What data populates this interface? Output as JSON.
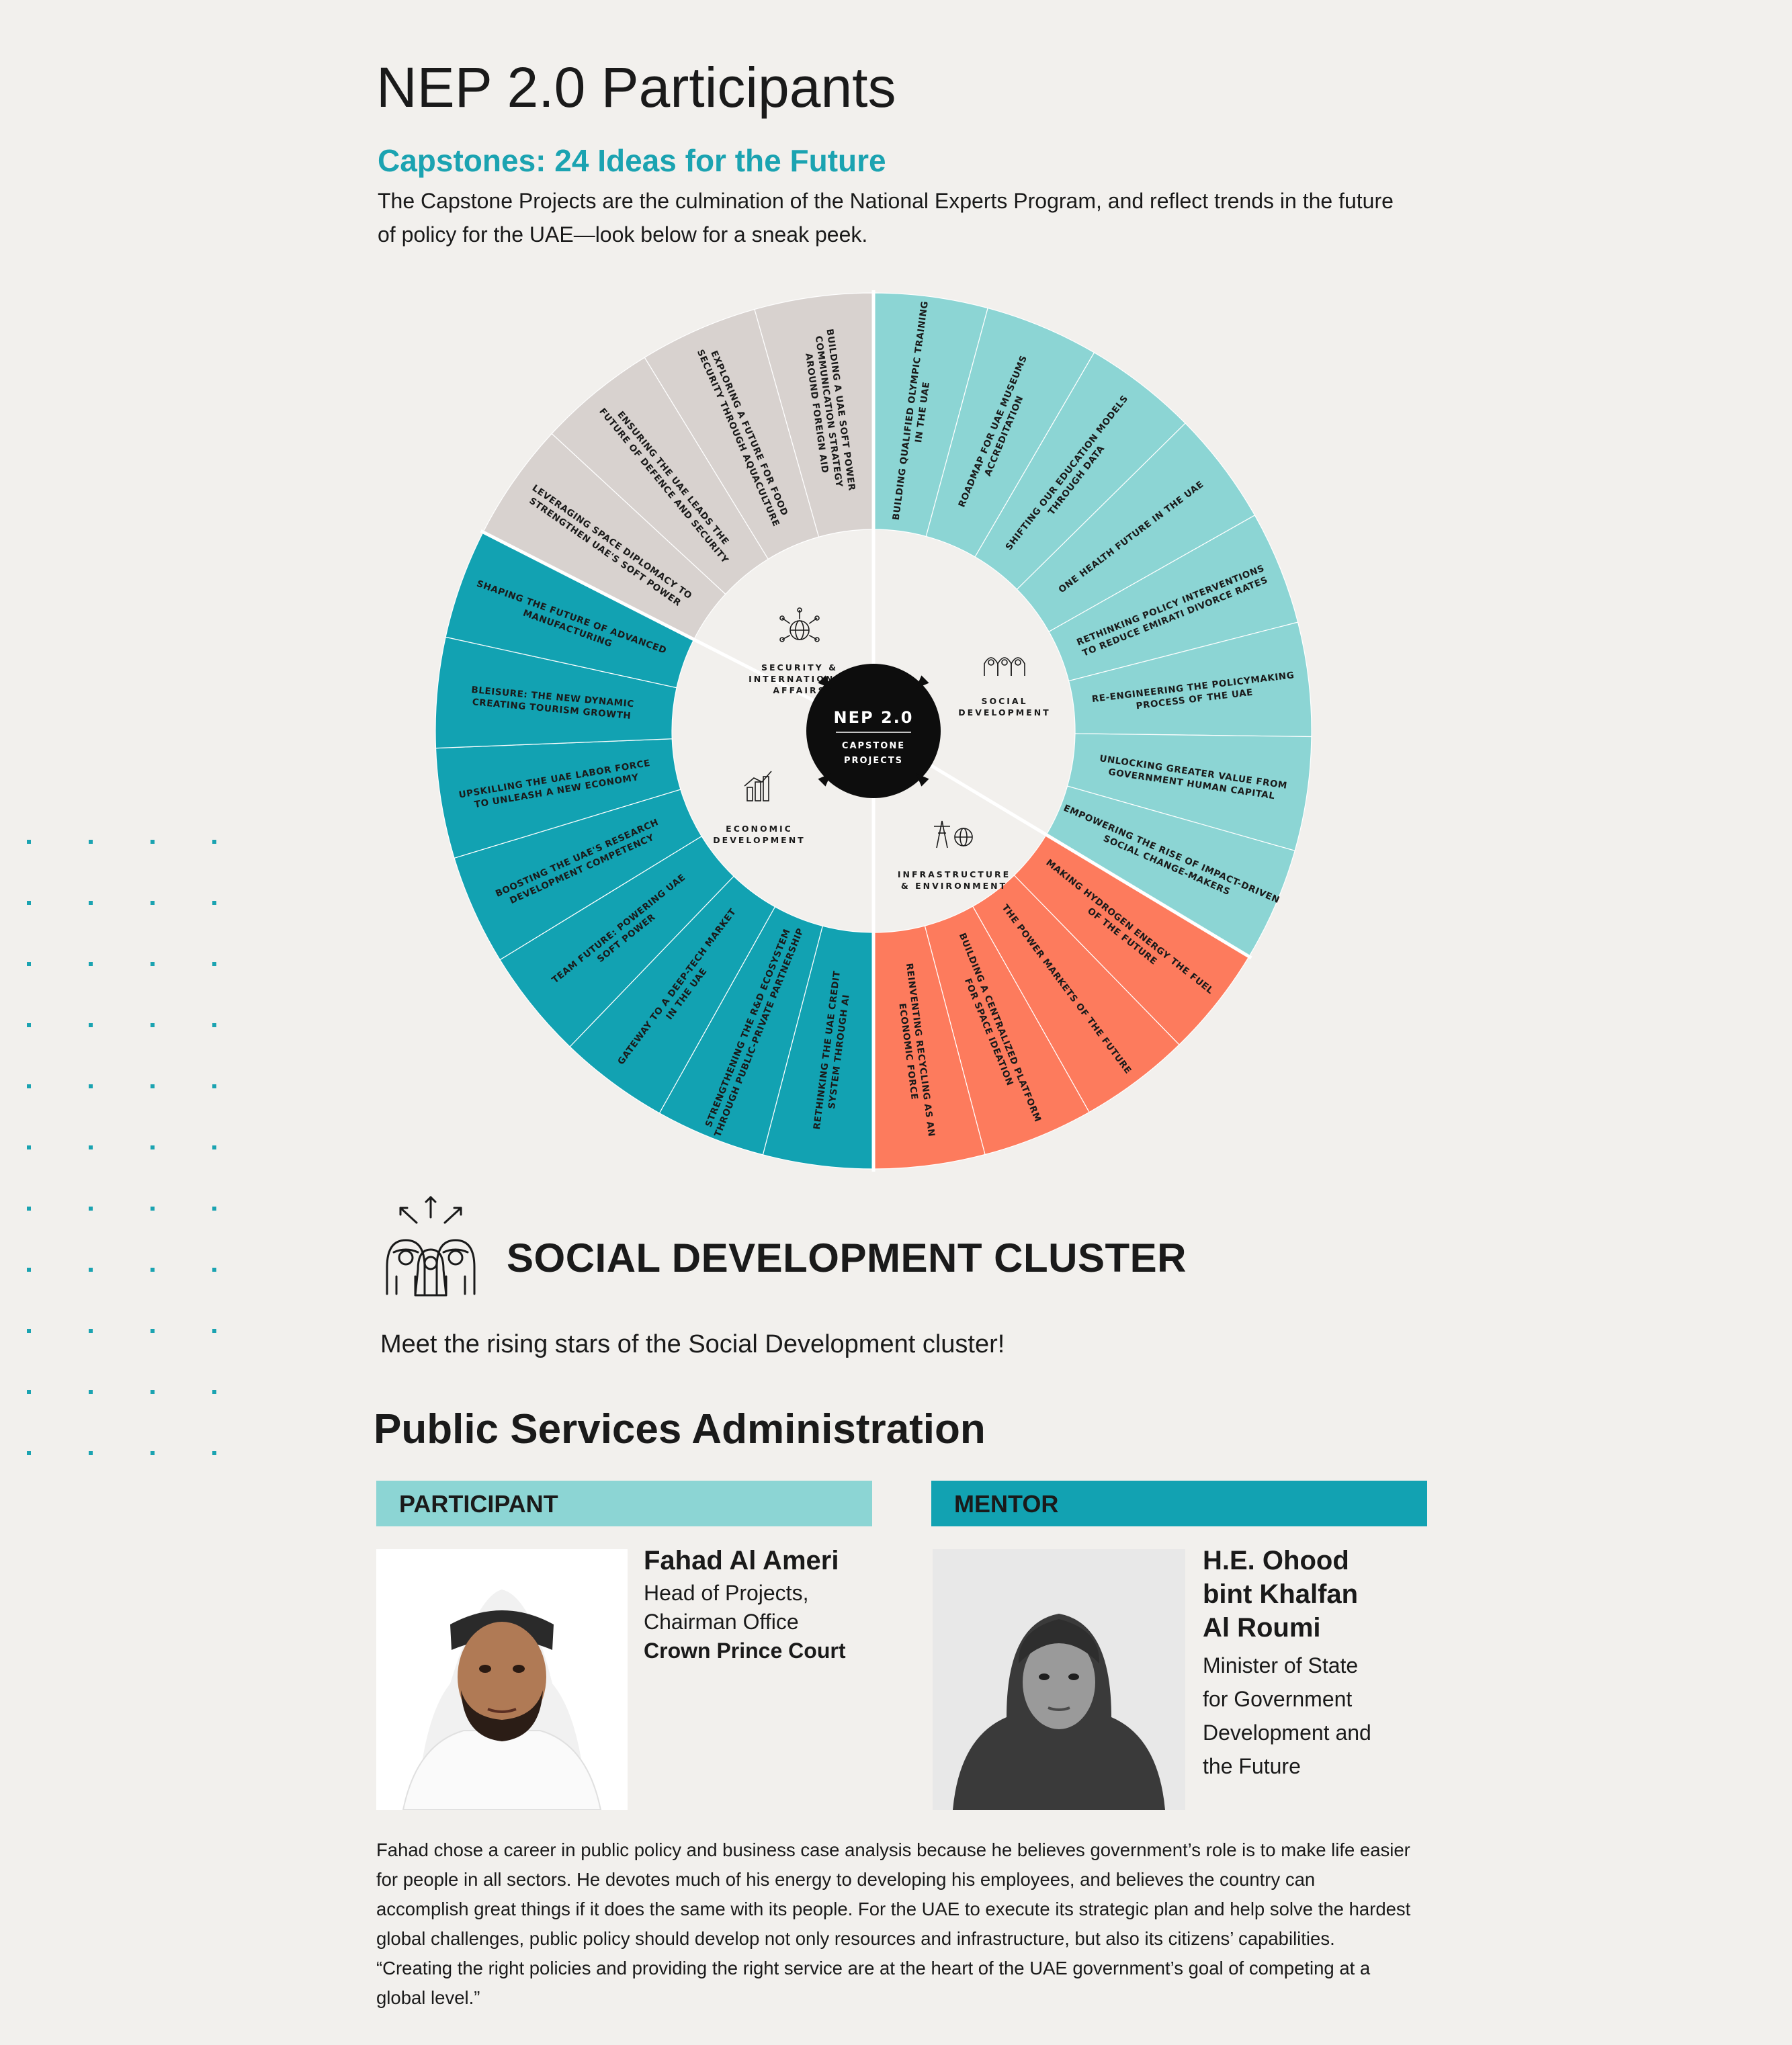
{
  "header": {
    "title": "NEP 2.0 Participants",
    "subtitle": "Capstones: 24 Ideas for the Future",
    "intro": "The Capstone Projects are the culmination of the National Experts Program, and reflect trends in the future of policy for the UAE—look below for a sneak peek."
  },
  "wheel": {
    "center_title": "NEP 2.0",
    "center_sub1": "CAPSTONE",
    "center_sub2": "PROJECTS",
    "clusters": [
      {
        "name": "social",
        "color": "#8cd5d4",
        "labels": [
          "SOCIAL",
          "DEVELOPMENT"
        ],
        "icon": "people-icon"
      },
      {
        "name": "infrastructure",
        "color": "#fd7b5d",
        "labels": [
          "INFRASTRUCTURE",
          "& ENVIRONMENT"
        ],
        "icon": "tower-globe-icon"
      },
      {
        "name": "economic",
        "color": "#12a2b2",
        "labels": [
          "ECONOMIC",
          "DEVELOPMENT"
        ],
        "icon": "bar-chart-icon"
      },
      {
        "name": "security",
        "color": "#d8d2cf",
        "labels": [
          "SECURITY &",
          "INTERNATIONAL",
          "AFFAIRS"
        ],
        "icon": "globe-network-icon"
      }
    ],
    "segments": [
      {
        "cluster": "social",
        "lines": [
          "BUILDING QUALIFIED OLYMPIC TRAINING",
          "IN THE UAE"
        ]
      },
      {
        "cluster": "social",
        "lines": [
          "ROADMAP FOR UAE MUSEUMS",
          "ACCREDITATION"
        ]
      },
      {
        "cluster": "social",
        "lines": [
          "SHIFTING OUR EDUCATION MODELS",
          "THROUGH DATA"
        ]
      },
      {
        "cluster": "social",
        "lines": [
          "ONE HEALTH FUTURE IN THE UAE"
        ]
      },
      {
        "cluster": "social",
        "lines": [
          "RETHINKING POLICY INTERVENTIONS",
          "TO REDUCE EMIRATI DIVORCE RATES"
        ]
      },
      {
        "cluster": "social",
        "lines": [
          "RE-ENGINEERING THE POLICYMAKING",
          "PROCESS OF THE UAE"
        ]
      },
      {
        "cluster": "social",
        "lines": [
          "UNLOCKING GREATER VALUE FROM",
          "GOVERNMENT HUMAN CAPITAL"
        ]
      },
      {
        "cluster": "social",
        "lines": [
          "EMPOWERING THE RISE OF IMPACT-DRIVEN",
          "SOCIAL CHANGE-MAKERS"
        ]
      },
      {
        "cluster": "infrastructure",
        "lines": [
          "MAKING HYDROGEN ENERGY THE FUEL",
          "OF THE FUTURE"
        ]
      },
      {
        "cluster": "infrastructure",
        "lines": [
          "THE POWER MARKETS OF THE FUTURE"
        ]
      },
      {
        "cluster": "infrastructure",
        "lines": [
          "BUILDING A CENTRALIZED PLATFORM",
          "FOR SPACE IDEATION"
        ]
      },
      {
        "cluster": "infrastructure",
        "lines": [
          "REINVENTING RECYCLING AS AN",
          "ECONOMIC FORCE"
        ]
      },
      {
        "cluster": "economic",
        "lines": [
          "RETHINKING THE UAE CREDIT",
          "SYSTEM THROUGH AI"
        ]
      },
      {
        "cluster": "economic",
        "lines": [
          "STRENGTHENING THE R&D ECOSYSTEM",
          "THROUGH PUBLIC-PRIVATE PARTNERSHIP"
        ]
      },
      {
        "cluster": "economic",
        "lines": [
          "GATEWAY TO A DEEP-TECH MARKET",
          "IN THE UAE"
        ]
      },
      {
        "cluster": "economic",
        "lines": [
          "TEAM FUTURE: POWERING UAE",
          "SOFT POWER"
        ]
      },
      {
        "cluster": "economic",
        "lines": [
          "BOOSTING THE UAE'S RESEARCH",
          "DEVELOPMENT COMPETENCY"
        ]
      },
      {
        "cluster": "economic",
        "lines": [
          "UPSKILLING THE UAE LABOR FORCE",
          "TO UNLEASH A NEW ECONOMY"
        ]
      },
      {
        "cluster": "economic",
        "lines": [
          "BLEISURE: THE NEW DYNAMIC",
          "CREATING TOURISM GROWTH"
        ]
      },
      {
        "cluster": "economic",
        "lines": [
          "SHAPING THE FUTURE OF ADVANCED",
          "MANUFACTURING"
        ]
      },
      {
        "cluster": "security",
        "lines": [
          "LEVERAGING SPACE DIPLOMACY TO",
          "STRENGTHEN UAE'S SOFT POWER"
        ]
      },
      {
        "cluster": "security",
        "lines": [
          "ENSURING THE UAE LEADS THE",
          "FUTURE OF DEFENCE AND SECURITY"
        ]
      },
      {
        "cluster": "security",
        "lines": [
          "EXPLORING A FUTURE FOR FOOD",
          "SECURITY THROUGH AQUACULTURE"
        ]
      },
      {
        "cluster": "security",
        "lines": [
          "BUILDING A UAE SOFT POWER",
          "COMMUNICATION STRATEGY",
          "AROUND FOREIGN AID"
        ]
      }
    ]
  },
  "cluster_section": {
    "title": "SOCIAL DEVELOPMENT CLUSTER",
    "icon": "people-arrows-icon",
    "tagline": "Meet the rising stars of the Social Development cluster!",
    "entity": "Public Services Administration"
  },
  "participant": {
    "heading": "PARTICIPANT",
    "name": "Fahad Al Ameri",
    "role_line1": "Head of Projects,",
    "role_line2": "Chairman Office",
    "org": "Crown Prince Court"
  },
  "mentor": {
    "heading": "MENTOR",
    "name_line1": "H.E. Ohood",
    "name_line2": "bint Khalfan",
    "name_line3": "Al Roumi",
    "title_line1": "Minister of State",
    "title_line2": "for Government",
    "title_line3": "Development and",
    "title_line4": "the Future"
  },
  "bio": "Fahad chose a career in public policy and business case analysis because he believes government’s role is to make life easier for people in all sectors. He devotes much of his energy to developing his employees, and believes the country can accomplish great things if it does the same with its people. For the UAE to execute its strategic plan and help solve the hardest global challenges, public policy should develop not only resources and infrastructure, but also its citizens’ capabilities. “Creating the right policies and providing the right service are at the heart of the UAE government’s goal of competing at a global level.”"
}
